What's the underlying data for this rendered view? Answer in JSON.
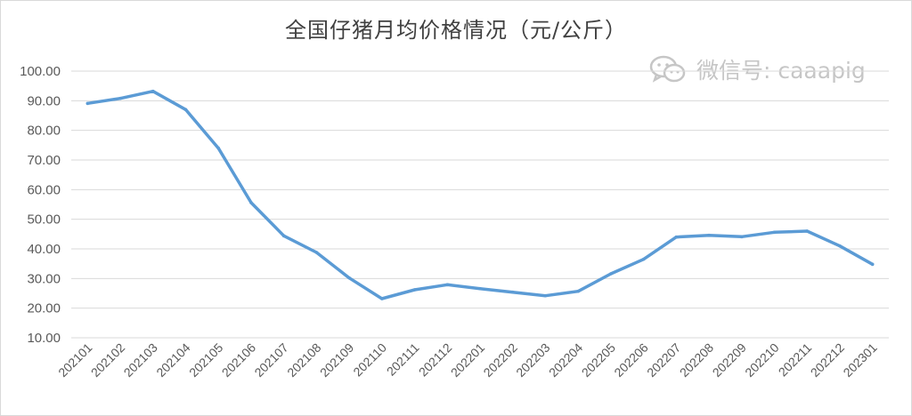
{
  "watermark": {
    "text": "微信号: caaapig",
    "icon": "wechat-icon"
  },
  "chart_data": {
    "type": "line",
    "title": "全国仔猪月均价格情况（元/公斤）",
    "xlabel": "",
    "ylabel": "",
    "ylim": [
      10,
      100
    ],
    "y_ticks": [
      "10.00",
      "20.00",
      "30.00",
      "40.00",
      "50.00",
      "60.00",
      "70.00",
      "80.00",
      "90.00",
      "100.00"
    ],
    "grid": true,
    "legend": "none",
    "categories": [
      "202101",
      "202102",
      "202103",
      "202104",
      "202105",
      "202106",
      "202107",
      "202108",
      "202109",
      "202110",
      "202111",
      "202112",
      "202201",
      "202202",
      "202203",
      "202204",
      "202205",
      "202206",
      "202207",
      "202208",
      "202209",
      "202210",
      "202211",
      "202212",
      "202301"
    ],
    "series": [
      {
        "values": [
          89.1,
          90.8,
          93.2,
          87.0,
          74.0,
          55.6,
          44.4,
          38.8,
          30.2,
          23.2,
          26.2,
          27.9,
          26.6,
          25.4,
          24.2,
          25.7,
          31.6,
          36.5,
          44.0,
          44.6,
          44.1,
          45.6,
          46.0,
          41.0,
          34.8
        ],
        "color": "#5b9bd5"
      }
    ]
  }
}
